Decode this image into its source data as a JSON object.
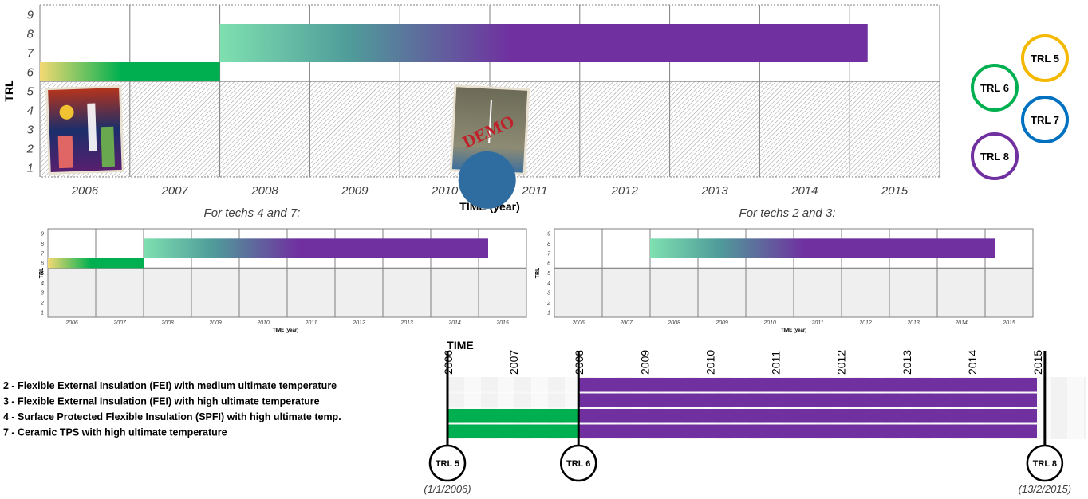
{
  "colors": {
    "purple": "#7030a0",
    "green": "#00b050",
    "yellow": "#f4d974",
    "mint": "#7fe0b0",
    "trl5": "#f5b800",
    "trl6": "#00b050",
    "trl7": "#0070c0",
    "trl8": "#7030a0",
    "hatch_bg": "#f0f0f0",
    "grid": "#7f7f7f"
  },
  "chart_data": [
    {
      "type": "timeline-bar",
      "id": "main",
      "ylabel": "TRL",
      "xlabel": "TIME (year)",
      "categories": [
        "2006",
        "2007",
        "2008",
        "2009",
        "2010",
        "2011",
        "2012",
        "2013",
        "2014",
        "2015"
      ],
      "yticks": [
        1,
        2,
        3,
        4,
        5,
        6,
        7,
        8,
        9
      ],
      "ylim": [
        0.5,
        9.5
      ],
      "hatched_below_trl": 5.5,
      "bars": [
        {
          "x_start": 2006.0,
          "x_end": 2008.0,
          "y_low": 5.5,
          "y_high": 6.5,
          "gradient": "yellow-to-green"
        },
        {
          "x_start": 2008.0,
          "x_end": 2015.2,
          "y_low": 6.5,
          "y_high": 8.5,
          "gradient": "mint-to-purple"
        }
      ],
      "images": [
        {
          "name": "poster-city-icon",
          "x": 2006.5
        },
        {
          "name": "demo-photo-icon",
          "label": "DEMO",
          "x": 2011.0
        }
      ]
    },
    {
      "type": "timeline-bar",
      "id": "techs-4-7",
      "title": "For techs 4 and 7:",
      "ylabel": "TRL",
      "xlabel": "TIME (year)",
      "categories": [
        "2006",
        "2007",
        "2008",
        "2009",
        "2010",
        "2011",
        "2012",
        "2013",
        "2014",
        "2015"
      ],
      "yticks": [
        1,
        2,
        3,
        4,
        5,
        6,
        7,
        8,
        9
      ],
      "ylim": [
        0.5,
        9.5
      ],
      "bars": [
        {
          "x_start": 2006.0,
          "x_end": 2008.0,
          "y_low": 5.5,
          "y_high": 6.5,
          "gradient": "yellow-to-green"
        },
        {
          "x_start": 2008.0,
          "x_end": 2015.2,
          "y_low": 6.5,
          "y_high": 8.5,
          "gradient": "mint-to-purple"
        }
      ]
    },
    {
      "type": "timeline-bar",
      "id": "techs-2-3",
      "title": "For techs 2 and 3:",
      "ylabel": "TRL",
      "xlabel": "TIME (year)",
      "categories": [
        "2006",
        "2007",
        "2008",
        "2009",
        "2010",
        "2011",
        "2012",
        "2013",
        "2014",
        "2015"
      ],
      "yticks": [
        1,
        2,
        3,
        4,
        5,
        6,
        7,
        8,
        9
      ],
      "ylim": [
        0.5,
        9.5
      ],
      "bars": [
        {
          "x_start": 2008.0,
          "x_end": 2015.2,
          "y_low": 6.5,
          "y_high": 8.5,
          "gradient": "mint-to-purple"
        }
      ]
    },
    {
      "type": "gantt",
      "id": "gantt",
      "xlabel": "TIME",
      "years": [
        "2006",
        "2007",
        "2008",
        "2009",
        "2010",
        "2011",
        "2012",
        "2013",
        "2014",
        "2015"
      ],
      "rows": [
        {
          "label": "2 - Flexible External Insulation (FEI) with medium ultimate temperature",
          "segments": [
            {
              "start": 2008.0,
              "end": 2015.0,
              "color": "purple"
            }
          ]
        },
        {
          "label": "3 - Flexible External Insulation (FEI) with high ultimate temperature",
          "segments": [
            {
              "start": 2008.0,
              "end": 2015.0,
              "color": "purple"
            }
          ]
        },
        {
          "label": "4 - Surface Protected Flexible Insulation (SPFI) with high ultimate temp.",
          "segments": [
            {
              "start": 2006.0,
              "end": 2008.0,
              "color": "green"
            },
            {
              "start": 2008.0,
              "end": 2015.0,
              "color": "purple"
            }
          ]
        },
        {
          "label": "7 - Ceramic TPS with high ultimate temperature",
          "segments": [
            {
              "start": 2006.0,
              "end": 2008.0,
              "color": "green"
            },
            {
              "start": 2008.0,
              "end": 2015.0,
              "color": "purple"
            }
          ]
        }
      ],
      "milestones": [
        {
          "label": "TRL 5",
          "x": 2006.0,
          "date": "(1/1/2006)"
        },
        {
          "label": "TRL 6",
          "x": 2008.0,
          "date": ""
        },
        {
          "label": "TRL 8",
          "x": 2015.12,
          "date": "(13/2/2015)"
        }
      ]
    }
  ],
  "legend": [
    {
      "label": "TRL 5",
      "color": "trl5"
    },
    {
      "label": "TRL 6",
      "color": "trl6"
    },
    {
      "label": "TRL 7",
      "color": "trl7"
    },
    {
      "label": "TRL 8",
      "color": "trl8"
    }
  ]
}
